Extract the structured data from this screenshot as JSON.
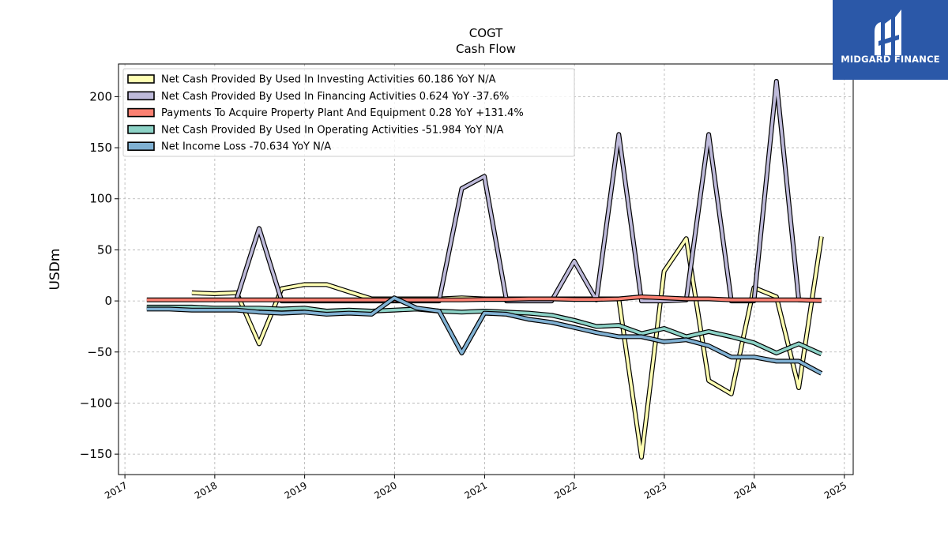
{
  "chart_data": {
    "type": "line",
    "title": "COGT",
    "subtitle": "Cash Flow",
    "xlabel": "",
    "ylabel": "USDm",
    "xlim": [
      "2016-12-06",
      "2025-02-06"
    ],
    "ylim": [
      -170,
      232
    ],
    "x_ticks": [
      "2017",
      "2018",
      "2019",
      "2020",
      "2021",
      "2022",
      "2023",
      "2024",
      "2025"
    ],
    "y_ticks": [
      -150,
      -100,
      -50,
      0,
      50,
      100,
      150,
      200
    ],
    "y_tick_labels": [
      "−150",
      "−100",
      "−50",
      "0",
      "50",
      "100",
      "150",
      "200"
    ],
    "grid": true,
    "legend_position": "top-left",
    "series": [
      {
        "name": "Net Cash Provided By Used In Investing Activities  60.186 YoY N/A",
        "color": "#ffffb3",
        "points": [
          [
            "2017-09-30",
            8
          ],
          [
            "2017-12-31",
            7
          ],
          [
            "2018-03-31",
            8
          ],
          [
            "2018-06-30",
            -42
          ],
          [
            "2018-09-30",
            12
          ],
          [
            "2018-12-31",
            16
          ],
          [
            "2019-03-31",
            16
          ],
          [
            "2019-06-30",
            9
          ],
          [
            "2019-09-30",
            2
          ],
          [
            "2019-12-31",
            2
          ],
          [
            "2020-03-31",
            2
          ],
          [
            "2020-06-30",
            2
          ],
          [
            "2020-09-30",
            3
          ],
          [
            "2020-12-31",
            2
          ],
          [
            "2021-03-31",
            2
          ],
          [
            "2021-06-30",
            2
          ],
          [
            "2021-09-30",
            2
          ],
          [
            "2021-12-31",
            2
          ],
          [
            "2022-03-31",
            2
          ],
          [
            "2022-06-30",
            2
          ],
          [
            "2022-09-30",
            -153
          ],
          [
            "2022-12-31",
            29
          ],
          [
            "2023-03-31",
            61
          ],
          [
            "2023-06-30",
            -78
          ],
          [
            "2023-09-30",
            -91
          ],
          [
            "2023-12-31",
            13
          ],
          [
            "2024-03-31",
            4
          ],
          [
            "2024-06-30",
            -85
          ],
          [
            "2024-09-30",
            63
          ]
        ]
      },
      {
        "name": "Net Cash Provided By Used In Financing Activities  0.624 YoY -37.6%",
        "color": "#bebada",
        "points": [
          [
            "2018-03-31",
            2
          ],
          [
            "2018-06-30",
            71
          ],
          [
            "2018-09-30",
            0
          ],
          [
            "2018-12-31",
            0
          ],
          [
            "2019-03-31",
            0
          ],
          [
            "2019-06-30",
            0
          ],
          [
            "2019-09-30",
            0
          ],
          [
            "2019-12-31",
            0
          ],
          [
            "2020-03-31",
            0
          ],
          [
            "2020-06-30",
            0
          ],
          [
            "2020-09-30",
            110
          ],
          [
            "2020-12-31",
            122
          ],
          [
            "2021-03-31",
            0
          ],
          [
            "2021-06-30",
            0
          ],
          [
            "2021-09-30",
            0
          ],
          [
            "2021-12-31",
            39
          ],
          [
            "2022-03-31",
            1
          ],
          [
            "2022-06-30",
            163
          ],
          [
            "2022-09-30",
            0
          ],
          [
            "2022-12-31",
            0
          ],
          [
            "2023-03-31",
            1
          ],
          [
            "2023-06-30",
            163
          ],
          [
            "2023-09-30",
            0
          ],
          [
            "2023-12-31",
            0
          ],
          [
            "2024-03-31",
            215
          ],
          [
            "2024-06-30",
            1
          ],
          [
            "2024-09-30",
            0.6
          ]
        ]
      },
      {
        "name": "Payments To Acquire Property Plant And Equipment  0.28 YoY +131.4%",
        "color": "#fb8072",
        "points": [
          [
            "2017-03-31",
            1
          ],
          [
            "2017-06-30",
            1
          ],
          [
            "2017-09-30",
            1
          ],
          [
            "2017-12-31",
            1
          ],
          [
            "2018-03-31",
            1
          ],
          [
            "2018-06-30",
            1
          ],
          [
            "2018-09-30",
            1
          ],
          [
            "2018-12-31",
            1
          ],
          [
            "2019-03-31",
            1
          ],
          [
            "2019-06-30",
            1
          ],
          [
            "2019-09-30",
            1
          ],
          [
            "2019-12-31",
            1
          ],
          [
            "2020-03-31",
            1
          ],
          [
            "2020-06-30",
            1
          ],
          [
            "2020-09-30",
            1
          ],
          [
            "2020-12-31",
            1.5
          ],
          [
            "2021-03-31",
            1.5
          ],
          [
            "2021-06-30",
            2
          ],
          [
            "2021-09-30",
            2
          ],
          [
            "2021-12-31",
            1.5
          ],
          [
            "2022-03-31",
            1.5
          ],
          [
            "2022-06-30",
            2
          ],
          [
            "2022-09-30",
            4
          ],
          [
            "2022-12-31",
            3
          ],
          [
            "2023-03-31",
            2
          ],
          [
            "2023-06-30",
            2
          ],
          [
            "2023-09-30",
            1
          ],
          [
            "2023-12-31",
            1
          ],
          [
            "2024-03-31",
            1
          ],
          [
            "2024-06-30",
            1
          ],
          [
            "2024-09-30",
            0.3
          ]
        ]
      },
      {
        "name": "Net Cash Provided By Used In Operating Activities  -51.984 YoY N/A",
        "color": "#8dd3c7",
        "points": [
          [
            "2017-03-31",
            -6
          ],
          [
            "2017-06-30",
            -6
          ],
          [
            "2017-09-30",
            -6
          ],
          [
            "2017-12-31",
            -7
          ],
          [
            "2018-03-31",
            -7
          ],
          [
            "2018-06-30",
            -7
          ],
          [
            "2018-09-30",
            -8
          ],
          [
            "2018-12-31",
            -7
          ],
          [
            "2019-03-31",
            -10
          ],
          [
            "2019-06-30",
            -9
          ],
          [
            "2019-09-30",
            -10
          ],
          [
            "2019-12-31",
            -9
          ],
          [
            "2020-03-31",
            -8
          ],
          [
            "2020-06-30",
            -10
          ],
          [
            "2020-09-30",
            -11
          ],
          [
            "2020-12-31",
            -10
          ],
          [
            "2021-03-31",
            -11
          ],
          [
            "2021-06-30",
            -12
          ],
          [
            "2021-09-30",
            -14
          ],
          [
            "2021-12-31",
            -19
          ],
          [
            "2022-03-31",
            -25
          ],
          [
            "2022-06-30",
            -24
          ],
          [
            "2022-09-30",
            -32
          ],
          [
            "2022-12-31",
            -27
          ],
          [
            "2023-03-31",
            -35
          ],
          [
            "2023-06-30",
            -30
          ],
          [
            "2023-09-30",
            -35
          ],
          [
            "2023-12-31",
            -41
          ],
          [
            "2024-03-31",
            -51
          ],
          [
            "2024-06-30",
            -42
          ],
          [
            "2024-09-30",
            -52
          ]
        ]
      },
      {
        "name": "Net Income Loss  -70.634 YoY N/A",
        "color": "#80b1d3",
        "points": [
          [
            "2017-03-31",
            -8
          ],
          [
            "2017-06-30",
            -8
          ],
          [
            "2017-09-30",
            -9
          ],
          [
            "2017-12-31",
            -9
          ],
          [
            "2018-03-31",
            -9
          ],
          [
            "2018-06-30",
            -11
          ],
          [
            "2018-09-30",
            -12
          ],
          [
            "2018-12-31",
            -11
          ],
          [
            "2019-03-31",
            -13
          ],
          [
            "2019-06-30",
            -12
          ],
          [
            "2019-09-30",
            -13
          ],
          [
            "2019-12-31",
            3
          ],
          [
            "2020-03-31",
            -7
          ],
          [
            "2020-06-30",
            -10
          ],
          [
            "2020-09-30",
            -51
          ],
          [
            "2020-12-31",
            -12
          ],
          [
            "2021-03-31",
            -13
          ],
          [
            "2021-06-30",
            -18
          ],
          [
            "2021-09-30",
            -21
          ],
          [
            "2021-12-31",
            -26
          ],
          [
            "2022-03-31",
            -31
          ],
          [
            "2022-06-30",
            -35
          ],
          [
            "2022-09-30",
            -35
          ],
          [
            "2022-12-31",
            -40
          ],
          [
            "2023-03-31",
            -38
          ],
          [
            "2023-06-30",
            -44
          ],
          [
            "2023-09-30",
            -55
          ],
          [
            "2023-12-31",
            -55
          ],
          [
            "2024-03-31",
            -59
          ],
          [
            "2024-06-30",
            -59
          ],
          [
            "2024-09-30",
            -71
          ]
        ]
      }
    ]
  },
  "logo": {
    "text": "MIDGARD FINANCE",
    "background": "#2b58a8"
  }
}
